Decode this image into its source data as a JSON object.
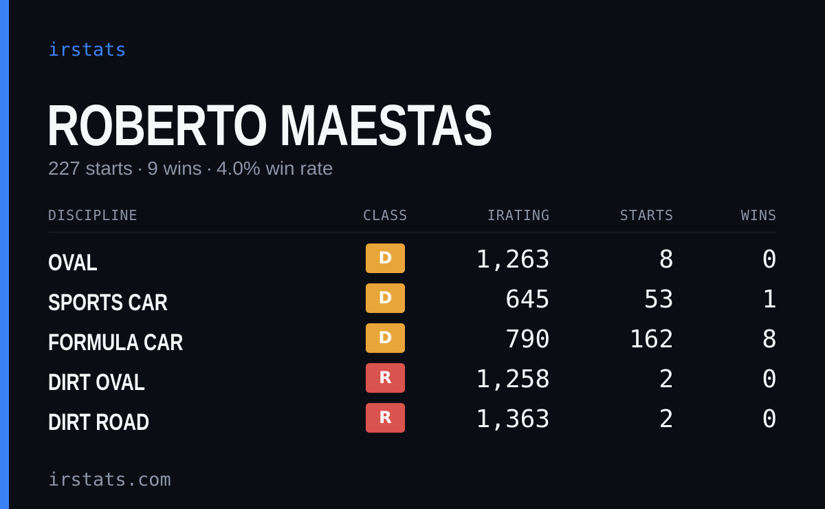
{
  "brand": "irstats",
  "driver": {
    "name": "ROBERTO MAESTAS"
  },
  "summary": {
    "starts": "227 starts",
    "wins": "9 wins",
    "win_rate": "4.0% win rate",
    "separator": "·"
  },
  "table": {
    "headers": {
      "discipline": "DISCIPLINE",
      "class": "CLASS",
      "irating": "IRATING",
      "starts": "STARTS",
      "wins": "WINS"
    },
    "rows": [
      {
        "discipline": "OVAL",
        "class": "D",
        "irating": "1,263",
        "starts": "8",
        "wins": "0"
      },
      {
        "discipline": "SPORTS CAR",
        "class": "D",
        "irating": "645",
        "starts": "53",
        "wins": "1"
      },
      {
        "discipline": "FORMULA CAR",
        "class": "D",
        "irating": "790",
        "starts": "162",
        "wins": "8"
      },
      {
        "discipline": "DIRT OVAL",
        "class": "R",
        "irating": "1,258",
        "starts": "2",
        "wins": "0"
      },
      {
        "discipline": "DIRT ROAD",
        "class": "R",
        "irating": "1,363",
        "starts": "2",
        "wins": "0"
      }
    ]
  },
  "footer": "irstats.com",
  "colors": {
    "background": "#0a0d14",
    "accent": "#3b82f6",
    "class_d": "#e8a63a",
    "class_r": "#d9534f",
    "text_primary": "#f5f7fa",
    "text_muted": "#8b94a5"
  }
}
